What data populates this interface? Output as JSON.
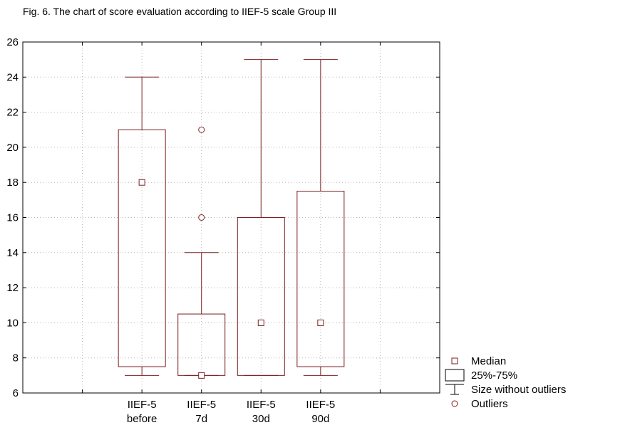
{
  "chart_data": {
    "type": "boxplot",
    "title": "Fig. 6. The chart of score evaluation according to IIEF-5 scale Group III",
    "xlabel": "",
    "ylabel": "",
    "ylim": [
      6,
      26
    ],
    "yticks": [
      6,
      8,
      10,
      12,
      14,
      16,
      18,
      20,
      22,
      24,
      26
    ],
    "grid": true,
    "color": "#7a1f1f",
    "categories": [
      {
        "line1": "IIEF-5",
        "line2": "before"
      },
      {
        "line1": "IIEF-5",
        "line2": "7d"
      },
      {
        "line1": "IIEF-5",
        "line2": "30d"
      },
      {
        "line1": "IIEF-5",
        "line2": "90d"
      }
    ],
    "boxes": [
      {
        "median": 18,
        "q1": 7.5,
        "q3": 21,
        "whisker_low": 7,
        "whisker_high": 24,
        "outliers": []
      },
      {
        "median": 7,
        "q1": 7,
        "q3": 10.5,
        "whisker_low": 7,
        "whisker_high": 14,
        "outliers": [
          16,
          21
        ]
      },
      {
        "median": 10,
        "q1": 7,
        "q3": 16,
        "whisker_low": 7,
        "whisker_high": 25,
        "outliers": []
      },
      {
        "median": 10,
        "q1": 7.5,
        "q3": 17.5,
        "whisker_low": 7,
        "whisker_high": 25,
        "outliers": []
      }
    ],
    "legend": {
      "position": "bottom-right",
      "items": [
        {
          "symbol": "square",
          "label": "Median"
        },
        {
          "symbol": "box",
          "label": "25%-75%"
        },
        {
          "symbol": "whisker",
          "label": "Size without outliers"
        },
        {
          "symbol": "circle",
          "label": "Outliers"
        }
      ]
    }
  }
}
